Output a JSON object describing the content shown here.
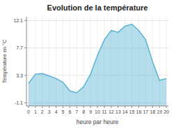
{
  "chart_data": {
    "type": "area",
    "title": "Evolution de la température",
    "xlabel": "heure par heure",
    "ylabel": "Température en °C",
    "x": [
      0,
      1,
      2,
      3,
      4,
      5,
      6,
      7,
      8,
      9,
      10,
      11,
      12,
      13,
      14,
      15,
      16,
      17,
      18,
      19,
      20
    ],
    "series": [
      {
        "color": "#5ab4d4",
        "values": [
          2.0,
          3.5,
          3.6,
          3.2,
          2.8,
          2.2,
          0.8,
          0.5,
          1.5,
          3.5,
          6.5,
          9.0,
          10.5,
          10.2,
          11.2,
          11.5,
          10.5,
          9.0,
          5.5,
          2.5,
          2.8
        ]
      }
    ],
    "xlim": [
      -0.3,
      20.3
    ],
    "xticks": [
      0,
      1,
      2,
      3,
      4,
      5,
      6,
      7,
      8,
      9,
      10,
      11,
      12,
      13,
      14,
      15,
      16,
      17,
      18,
      19,
      20
    ],
    "ylim": [
      -1.6,
      12.7
    ],
    "yticks": [
      -1.1,
      3.3,
      7.7,
      12.1
    ],
    "grid": true
  }
}
